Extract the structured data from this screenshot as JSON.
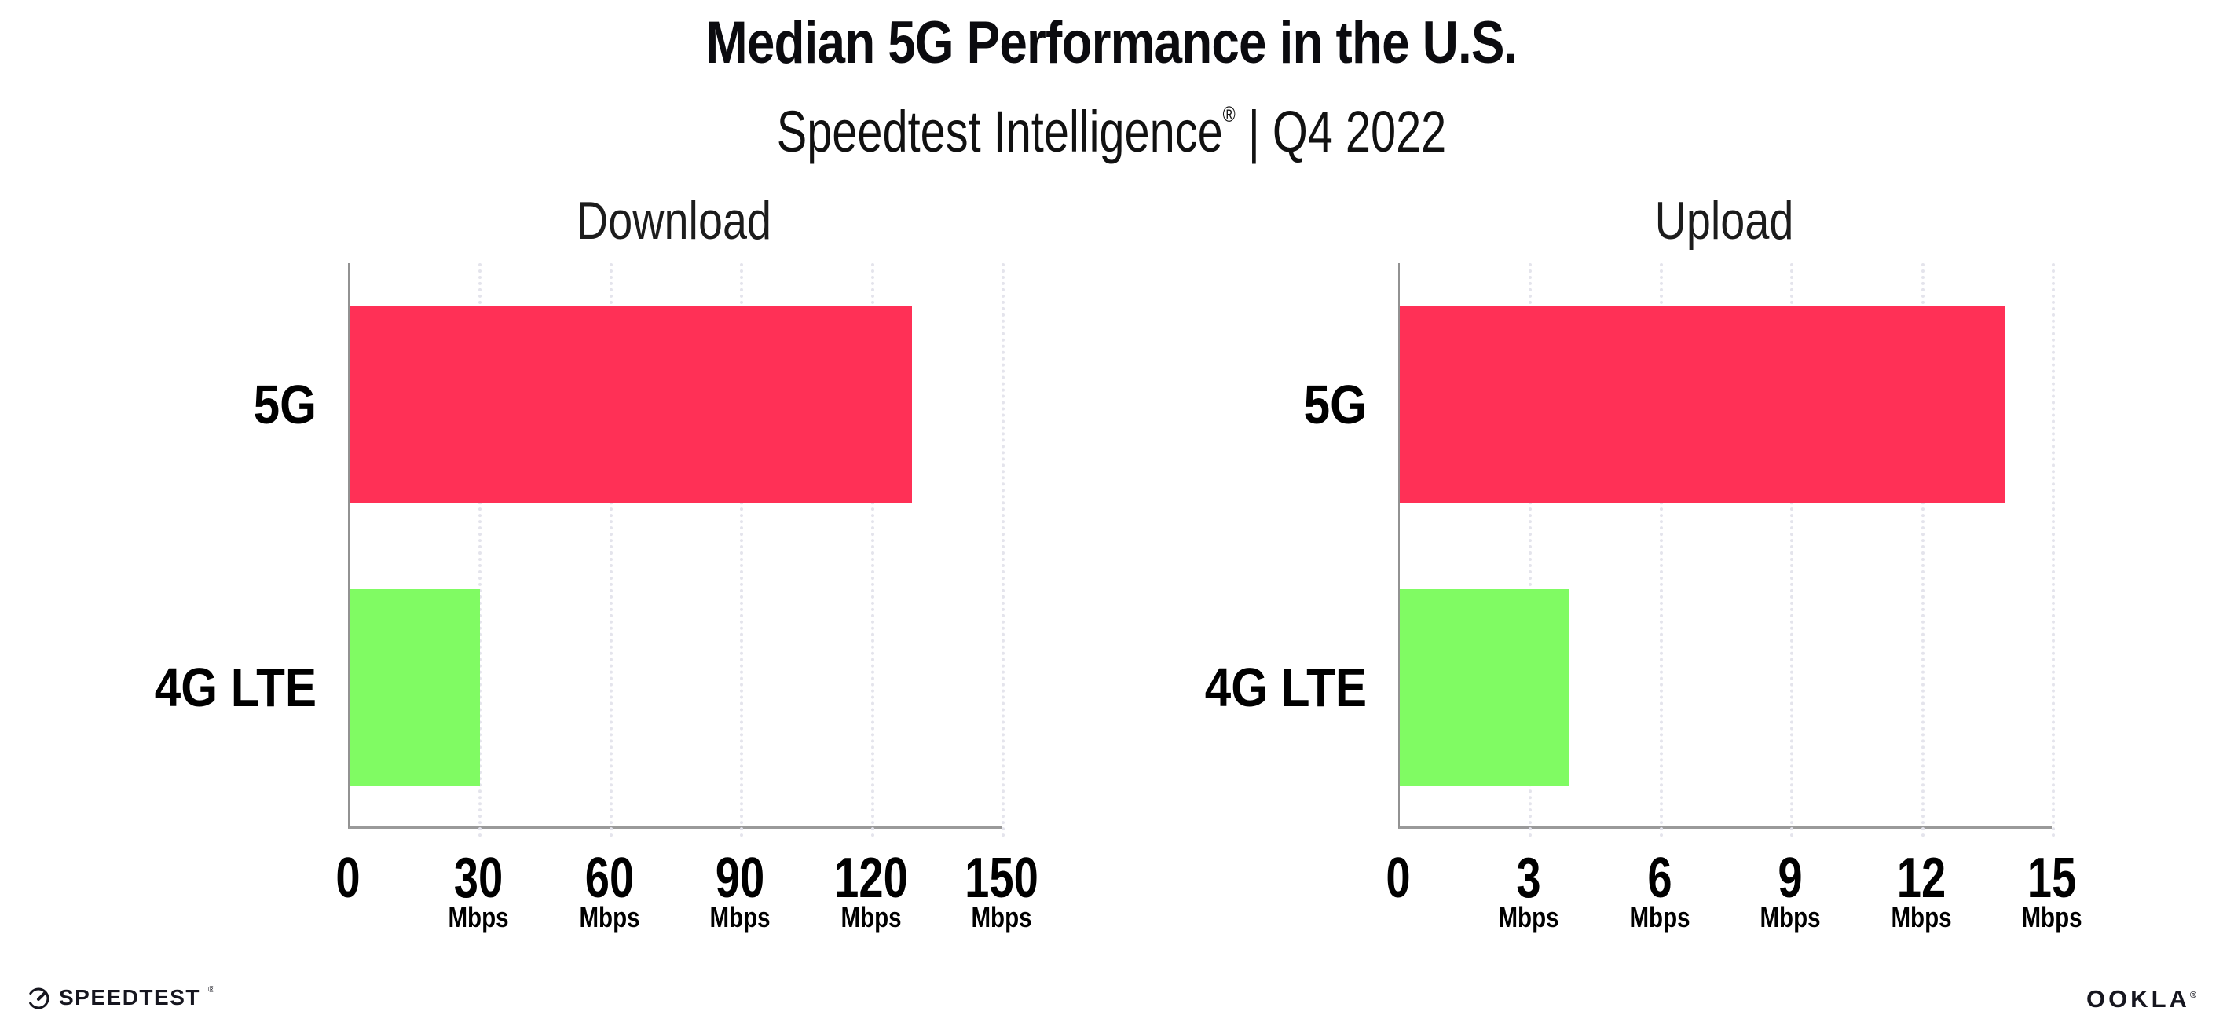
{
  "header": {
    "title": "Median 5G Performance in the U.S.",
    "subtitle_brand": "Speedtest Intelligence",
    "subtitle_reg": "®",
    "subtitle_rest": " | Q4 2022"
  },
  "chart_data": [
    {
      "type": "bar",
      "orientation": "horizontal",
      "title": "Download",
      "categories": [
        "5G",
        "4G LTE"
      ],
      "values": [
        129,
        30
      ],
      "xlim": [
        0,
        150
      ],
      "xticks": [
        0,
        30,
        60,
        90,
        120,
        150
      ],
      "tick_unit": "Mbps",
      "bar_colors": [
        "#FF3056",
        "#80FB63"
      ],
      "grid": "dotted-vertical",
      "legend": "none"
    },
    {
      "type": "bar",
      "orientation": "horizontal",
      "title": "Upload",
      "categories": [
        "5G",
        "4G LTE"
      ],
      "values": [
        13.9,
        3.9
      ],
      "xlim": [
        0,
        15
      ],
      "xticks": [
        0,
        3,
        6,
        9,
        12,
        15
      ],
      "tick_unit": "Mbps",
      "bar_colors": [
        "#FF3056",
        "#80FB63"
      ],
      "grid": "dotted-vertical",
      "legend": "none"
    }
  ],
  "footer": {
    "speedtest_label": "SPEEDTEST",
    "speedtest_reg": "®",
    "ookla_label": "OOKLA",
    "ookla_reg": "®"
  },
  "colors": {
    "bar_5g": "#FF3056",
    "bar_4g_lte": "#80FB63",
    "axis_line": "#9a9a9a",
    "gridline": "#e4e4ec",
    "text": "#000000"
  }
}
